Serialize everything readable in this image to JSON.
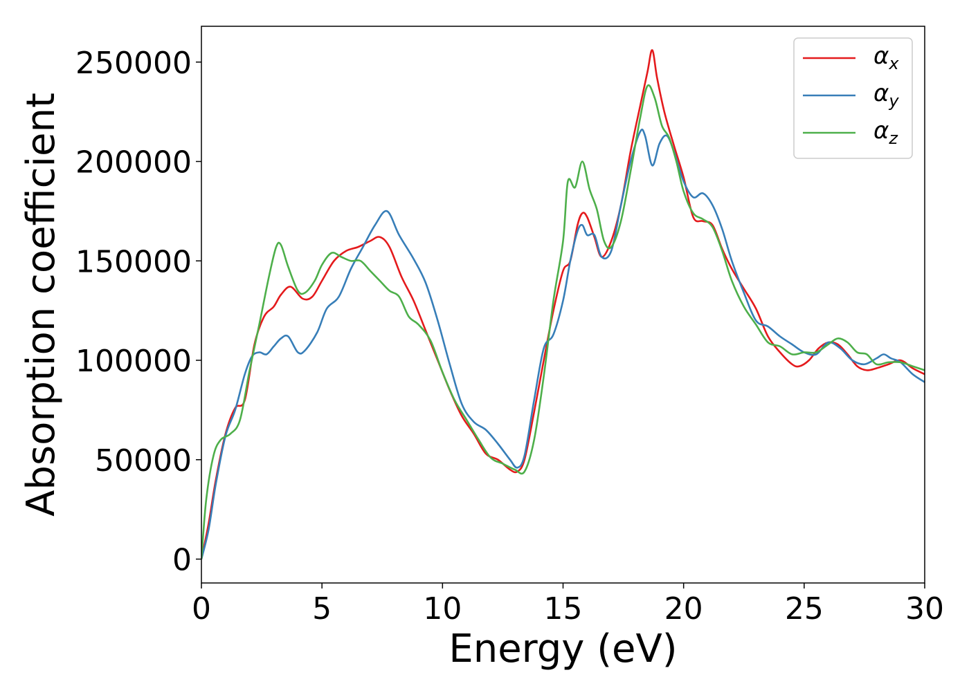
{
  "chart_data": {
    "type": "line",
    "title": "",
    "xlabel": "Energy (eV)",
    "ylabel": "Absorption coefficient",
    "xlim": [
      0,
      30
    ],
    "ylim": [
      -12000,
      268000
    ],
    "xticks": [
      0,
      5,
      10,
      15,
      20,
      25,
      30
    ],
    "yticks": [
      0,
      50000,
      100000,
      150000,
      200000,
      250000
    ],
    "grid": false,
    "legend_position": "top-right",
    "series": [
      {
        "name": "α",
        "subscript": "x",
        "color": "#e41a1c",
        "x": [
          0,
          0.3,
          0.6,
          1.0,
          1.4,
          1.8,
          2.2,
          2.6,
          3.0,
          3.3,
          3.7,
          4.2,
          4.6,
          5.0,
          5.5,
          6.0,
          6.5,
          7.0,
          7.4,
          7.8,
          8.3,
          8.8,
          9.3,
          9.8,
          10.3,
          10.8,
          11.3,
          11.8,
          12.3,
          12.8,
          13.1,
          13.4,
          13.8,
          14.2,
          14.6,
          15.0,
          15.3,
          15.6,
          15.8,
          16.0,
          16.3,
          16.6,
          17.0,
          17.4,
          17.8,
          18.2,
          18.5,
          18.7,
          18.9,
          19.2,
          19.6,
          20.0,
          20.4,
          20.8,
          21.2,
          21.6,
          22.0,
          22.5,
          23.0,
          23.5,
          24.0,
          24.5,
          24.8,
          25.2,
          25.6,
          26.0,
          26.4,
          26.8,
          27.2,
          27.6,
          28.0,
          28.5,
          29.0,
          29.5,
          30.0
        ],
        "y": [
          0,
          18000,
          40000,
          63000,
          76000,
          80000,
          108000,
          122000,
          127000,
          133000,
          137000,
          131000,
          132000,
          140000,
          150000,
          155000,
          157000,
          160000,
          162000,
          157000,
          142000,
          130000,
          115000,
          100000,
          85000,
          72000,
          63000,
          53000,
          50000,
          45000,
          44000,
          50000,
          74000,
          100000,
          125000,
          145000,
          150000,
          168000,
          174000,
          172000,
          162000,
          152000,
          160000,
          178000,
          205000,
          228000,
          245000,
          256000,
          242000,
          225000,
          208000,
          192000,
          172000,
          170000,
          168000,
          156000,
          146000,
          136000,
          126000,
          112000,
          104000,
          98000,
          97000,
          100000,
          106000,
          109000,
          108000,
          103000,
          97000,
          95000,
          96000,
          98000,
          100000,
          96000,
          93000
        ]
      },
      {
        "name": "α",
        "subscript": "y",
        "color": "#377eb8",
        "x": [
          0,
          0.3,
          0.6,
          1.0,
          1.4,
          1.8,
          2.1,
          2.4,
          2.7,
          3.0,
          3.3,
          3.6,
          4.0,
          4.3,
          4.8,
          5.2,
          5.7,
          6.2,
          6.7,
          7.2,
          7.7,
          8.2,
          8.8,
          9.3,
          9.8,
          10.3,
          10.8,
          11.3,
          11.8,
          12.3,
          12.8,
          13.1,
          13.4,
          13.8,
          14.2,
          14.6,
          15.0,
          15.3,
          15.6,
          15.8,
          16.0,
          16.3,
          16.6,
          17.0,
          17.4,
          17.8,
          18.2,
          18.4,
          18.7,
          19.0,
          19.3,
          19.6,
          20.0,
          20.4,
          20.8,
          21.2,
          21.6,
          22.0,
          22.5,
          23.0,
          23.5,
          24.0,
          24.5,
          25.0,
          25.5,
          26.0,
          26.5,
          27.0,
          27.5,
          28.0,
          28.3,
          28.6,
          29.0,
          29.5,
          30.0
        ],
        "y": [
          0,
          15000,
          38000,
          62000,
          75000,
          93000,
          102000,
          104000,
          103000,
          107000,
          111000,
          112000,
          104000,
          105000,
          114000,
          126000,
          132000,
          146000,
          157000,
          168000,
          175000,
          163000,
          151000,
          139000,
          120000,
          98000,
          78000,
          69000,
          65000,
          58000,
          50000,
          46000,
          52000,
          80000,
          106000,
          113000,
          130000,
          150000,
          165000,
          168000,
          163000,
          163000,
          152000,
          155000,
          178000,
          200000,
          215000,
          213000,
          198000,
          209000,
          213000,
          205000,
          190000,
          182000,
          184000,
          178000,
          166000,
          150000,
          134000,
          120000,
          117000,
          112000,
          108000,
          104000,
          103000,
          109000,
          106000,
          100000,
          98000,
          101000,
          103000,
          101000,
          99000,
          93000,
          89000
        ]
      },
      {
        "name": "α",
        "subscript": "z",
        "color": "#4daf4a",
        "x": [
          0,
          0.2,
          0.5,
          0.8,
          1.2,
          1.6,
          2.0,
          2.4,
          2.8,
          3.1,
          3.3,
          3.6,
          4.0,
          4.3,
          4.7,
          5.0,
          5.4,
          5.8,
          6.2,
          6.6,
          7.0,
          7.4,
          7.8,
          8.2,
          8.6,
          9.0,
          9.5,
          10.0,
          10.5,
          11.0,
          11.5,
          12.0,
          12.5,
          13.0,
          13.4,
          13.8,
          14.2,
          14.6,
          15.0,
          15.2,
          15.5,
          15.8,
          16.1,
          16.4,
          16.7,
          17.0,
          17.4,
          17.8,
          18.2,
          18.5,
          18.8,
          19.1,
          19.4,
          19.7,
          20.0,
          20.4,
          20.8,
          21.2,
          21.6,
          22.0,
          22.5,
          23.0,
          23.5,
          24.0,
          24.5,
          25.0,
          25.5,
          26.0,
          26.4,
          26.8,
          27.2,
          27.6,
          28.0,
          28.5,
          29.0,
          29.5,
          30.0
        ],
        "y": [
          0,
          30000,
          52000,
          60000,
          63000,
          70000,
          95000,
          118000,
          142000,
          157000,
          158000,
          147000,
          135000,
          134000,
          140000,
          148000,
          154000,
          152000,
          150000,
          150000,
          145000,
          140000,
          135000,
          132000,
          122000,
          118000,
          110000,
          94000,
          80000,
          70000,
          60000,
          51000,
          48000,
          45000,
          44000,
          60000,
          92000,
          130000,
          160000,
          190000,
          187000,
          200000,
          186000,
          176000,
          160000,
          157000,
          170000,
          195000,
          222000,
          238000,
          232000,
          218000,
          212000,
          200000,
          185000,
          174000,
          171000,
          167000,
          155000,
          140000,
          127000,
          118000,
          109000,
          107000,
          103000,
          104000,
          104000,
          108000,
          111000,
          109000,
          104000,
          103000,
          98000,
          99000,
          99000,
          97000,
          95000
        ]
      }
    ]
  }
}
